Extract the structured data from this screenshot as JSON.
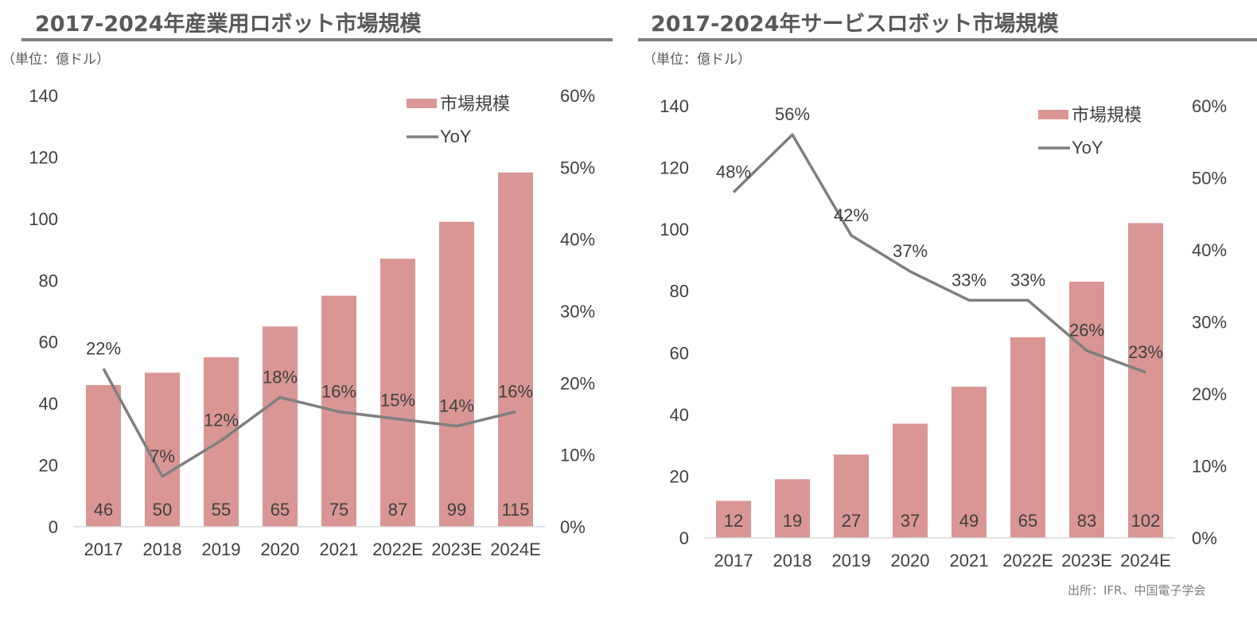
{
  "unit_label": "（単位：億ドル）",
  "source": "出所：IFR、中国電子学会",
  "legend": {
    "bar": "市場規模",
    "line": "YoY"
  },
  "colors": {
    "bar": "#d99694",
    "line": "#7f7f7f",
    "text": "#404040"
  },
  "chart_data": [
    {
      "type": "bar",
      "title": "2017-2024年産業用ロボット市場規模",
      "categories": [
        "2017",
        "2018",
        "2019",
        "2020",
        "2021",
        "2022E",
        "2023E",
        "2024E"
      ],
      "series": [
        {
          "name": "市場規模",
          "type": "bar",
          "axis": "left",
          "values": [
            46,
            50,
            55,
            65,
            75,
            87,
            99,
            115
          ],
          "labels": [
            "46",
            "50",
            "55",
            "65",
            "75",
            "87",
            "99",
            "115"
          ]
        },
        {
          "name": "YoY",
          "type": "line",
          "axis": "right",
          "values": [
            22,
            7,
            12,
            18,
            16,
            15,
            14,
            16
          ],
          "labels": [
            "22%",
            "7%",
            "12%",
            "18%",
            "16%",
            "15%",
            "14%",
            "16%"
          ]
        }
      ],
      "ylim": [
        0,
        140
      ],
      "y_ticks": [
        "0",
        "20",
        "40",
        "60",
        "80",
        "100",
        "120",
        "140"
      ],
      "y2lim": [
        0,
        60
      ],
      "y2_ticks": [
        "0%",
        "10%",
        "20%",
        "30%",
        "40%",
        "50%",
        "60%"
      ],
      "grid": false,
      "legend_position": "top-right"
    },
    {
      "type": "bar",
      "title": "2017-2024年サービスロボット市場規模",
      "categories": [
        "2017",
        "2018",
        "2019",
        "2020",
        "2021",
        "2022E",
        "2023E",
        "2024E"
      ],
      "series": [
        {
          "name": "市場規模",
          "type": "bar",
          "axis": "left",
          "values": [
            12,
            19,
            27,
            37,
            49,
            65,
            83,
            102
          ],
          "labels": [
            "12",
            "19",
            "27",
            "37",
            "49",
            "65",
            "83",
            "102"
          ]
        },
        {
          "name": "YoY",
          "type": "line",
          "axis": "right",
          "values": [
            48,
            56,
            42,
            37,
            33,
            33,
            26,
            23
          ],
          "labels": [
            "48%",
            "56%",
            "42%",
            "37%",
            "33%",
            "33%",
            "26%",
            "23%"
          ]
        }
      ],
      "ylim": [
        0,
        140
      ],
      "y_ticks": [
        "0",
        "20",
        "40",
        "60",
        "80",
        "100",
        "120",
        "140"
      ],
      "y2lim": [
        0,
        60
      ],
      "y2_ticks": [
        "0%",
        "10%",
        "20%",
        "30%",
        "40%",
        "50%",
        "60%"
      ],
      "grid": false,
      "legend_position": "top-right"
    }
  ]
}
